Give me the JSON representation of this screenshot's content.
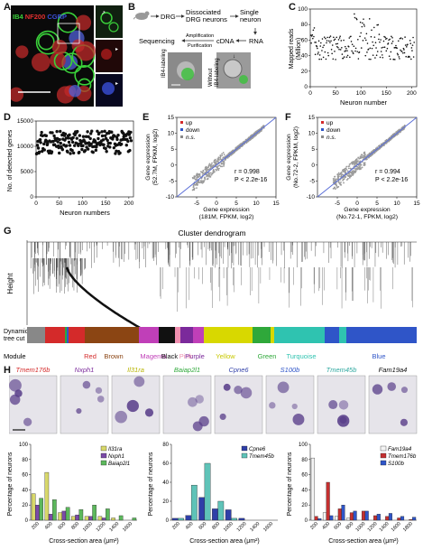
{
  "panels": {
    "A": {
      "label": "A",
      "legend": [
        {
          "text": "IB4",
          "color": "#3ad13a"
        },
        {
          "text": "/",
          "color": "#111111"
        },
        {
          "text": "NF200",
          "color": "#e23030"
        },
        {
          "text": "/",
          "color": "#111111"
        },
        {
          "text": "CGRP",
          "color": "#3a4fd8"
        }
      ]
    },
    "B": {
      "label": "B",
      "steps": {
        "drg": "DRG",
        "dissociated": "Dissociated\nDRG neurons",
        "single": "Single\nneuron",
        "rna": "RNA",
        "cdna": "cDNA",
        "amplification": "Amplification",
        "purification": "Purification",
        "sequencing": "Sequencing",
        "ib4": "IB4-labeling",
        "without": "Without\nIB4-labeling"
      }
    },
    "C": {
      "label": "C",
      "ylabel": "Mapped reads\n(Million)",
      "xlabel": "Neuron  number"
    },
    "D": {
      "label": "D",
      "ylabel": "No. of detected genes",
      "xlabel": "Neuron numbers"
    },
    "E": {
      "label": "E",
      "legend": [
        "up",
        "down",
        "n.s."
      ],
      "ylabel": "Gene expression\n(52.7M, FPKM, log2)",
      "xlabel": "Gene expression\n(181M, FPKM, log2)",
      "stat_r": "r = 0.998",
      "stat_p": "P < 2.2e-16"
    },
    "F": {
      "label": "F",
      "legend": [
        "up",
        "down",
        "n.s."
      ],
      "ylabel": "Gene expression\n(No.72-2, FPKM, log2)",
      "xlabel": "Gene expression\n(No.72-1, FPKM, log2)",
      "stat_r": "r = 0.994",
      "stat_p": "P < 2.2e-16"
    },
    "G": {
      "label": "G",
      "title": "Cluster dendrogram",
      "ylabel": "Height",
      "tree_label": "Dynamic\ntree cut",
      "module_label": "Module",
      "modules": [
        {
          "name": "Red",
          "color": "#d42a2a"
        },
        {
          "name": "Brown",
          "color": "#8b4513"
        },
        {
          "name": "Magenta",
          "color": "#c03fb8"
        },
        {
          "name": "Black",
          "color": "#111111"
        },
        {
          "name": "Pink",
          "color": "#f08fb0"
        },
        {
          "name": "Purple",
          "color": "#7b2a9b"
        },
        {
          "name": "Yellow",
          "color": "#c8c800"
        },
        {
          "name": "Green",
          "color": "#2fa83a"
        },
        {
          "name": "Turquoise",
          "color": "#2fc3b0"
        },
        {
          "name": "Blue",
          "color": "#2f55c8"
        }
      ]
    },
    "H": {
      "label": "H",
      "genes": [
        {
          "name": "Tmem176b",
          "color": "#d42a2a"
        },
        {
          "name": "Nxph1",
          "color": "#7b2a9b"
        },
        {
          "name": "Il31ra",
          "color": "#b7b400"
        },
        {
          "name": "Baiap2l1",
          "color": "#2fa83a"
        },
        {
          "name": "Cpne6",
          "color": "#2f3fa8"
        },
        {
          "name": "S100b",
          "color": "#2f55c8"
        },
        {
          "name": "Tmem45b",
          "color": "#2fa8a0"
        },
        {
          "name": "Fam19a4",
          "color": "#111111"
        }
      ],
      "ylabel": "Percentage of neurons",
      "xlabel": "Cross-section area (μm²)"
    }
  },
  "chart_data": [
    {
      "type": "scatter",
      "panel": "C",
      "xlabel": "Neuron  number",
      "ylabel": "Mapped reads (Million)",
      "xlim": [
        0,
        210
      ],
      "ylim": [
        0,
        100
      ],
      "xticks": [
        0,
        50,
        100,
        150,
        200
      ],
      "yticks": [
        0,
        20,
        40,
        60,
        80,
        100
      ]
    },
    {
      "type": "scatter",
      "panel": "D",
      "xlabel": "Neuron numbers",
      "ylabel": "No. of detected genes",
      "xlim": [
        0,
        210
      ],
      "ylim": [
        0,
        15000
      ],
      "xticks": [
        0,
        50,
        100,
        150,
        200
      ],
      "yticks": [
        0,
        5000,
        10000,
        15000
      ]
    },
    {
      "type": "scatter",
      "panel": "E",
      "xlim": [
        -10,
        15
      ],
      "ylim": [
        -10,
        15
      ],
      "xticks": [
        -5,
        0,
        5,
        10,
        15
      ],
      "yticks": [
        -10,
        -5,
        0,
        5,
        10,
        15
      ],
      "r": 0.998
    },
    {
      "type": "scatter",
      "panel": "F",
      "xlim": [
        -10,
        15
      ],
      "ylim": [
        -10,
        15
      ],
      "xticks": [
        -5,
        0,
        5,
        10,
        15
      ],
      "yticks": [
        -10,
        -5,
        0,
        5,
        10,
        15
      ],
      "r": 0.994
    },
    {
      "type": "bar",
      "panel": "H1",
      "categories": [
        "200",
        "400",
        "600",
        "800",
        "1000",
        "1200",
        "1400",
        "1600"
      ],
      "ylim": [
        0,
        100
      ],
      "yticks": [
        0,
        20,
        40,
        60,
        80,
        100
      ],
      "series": [
        {
          "name": "Il31ra",
          "color": "#d8d86a",
          "values": [
            35,
            63,
            10,
            5,
            5,
            5,
            3,
            0
          ]
        },
        {
          "name": "Nxph1",
          "color": "#7b4aa8",
          "values": [
            20,
            8,
            12,
            7,
            5,
            3,
            0,
            0
          ]
        },
        {
          "name": "Baiap2l1",
          "color": "#5cb85c",
          "values": [
            29,
            27,
            17,
            14,
            20,
            15,
            6,
            3
          ]
        }
      ]
    },
    {
      "type": "bar",
      "panel": "H2",
      "categories": [
        "200",
        "400",
        "600",
        "800",
        "1000",
        "1200",
        "1400",
        "1600"
      ],
      "ylim": [
        0,
        80
      ],
      "yticks": [
        0,
        20,
        40,
        60,
        80
      ],
      "series": [
        {
          "name": "Cpne6",
          "color": "#2f3fa8",
          "values": [
            2,
            5,
            24,
            12,
            11,
            2,
            0,
            0
          ]
        },
        {
          "name": "Tmem45b",
          "color": "#5fc3b8",
          "values": [
            2,
            37,
            60,
            20,
            2,
            0,
            0,
            0
          ]
        }
      ]
    },
    {
      "type": "bar",
      "panel": "H3",
      "categories": [
        "200",
        "400",
        "600",
        "800",
        "1000",
        "1200",
        "1400",
        "1600",
        "1800"
      ],
      "ylim": [
        0,
        100
      ],
      "yticks": [
        0,
        20,
        40,
        60,
        80,
        100
      ],
      "series": [
        {
          "name": "Fam19a4",
          "color": "#f4f4f4",
          "values": [
            82,
            10,
            5,
            3,
            0,
            0,
            0,
            0,
            0
          ]
        },
        {
          "name": "Tmem176b",
          "color": "#c43030",
          "values": [
            5,
            50,
            15,
            10,
            12,
            6,
            5,
            3,
            1
          ]
        },
        {
          "name": "S100b",
          "color": "#2f55c8",
          "values": [
            2,
            6,
            20,
            12,
            12,
            8,
            9,
            5,
            4
          ]
        }
      ]
    }
  ]
}
